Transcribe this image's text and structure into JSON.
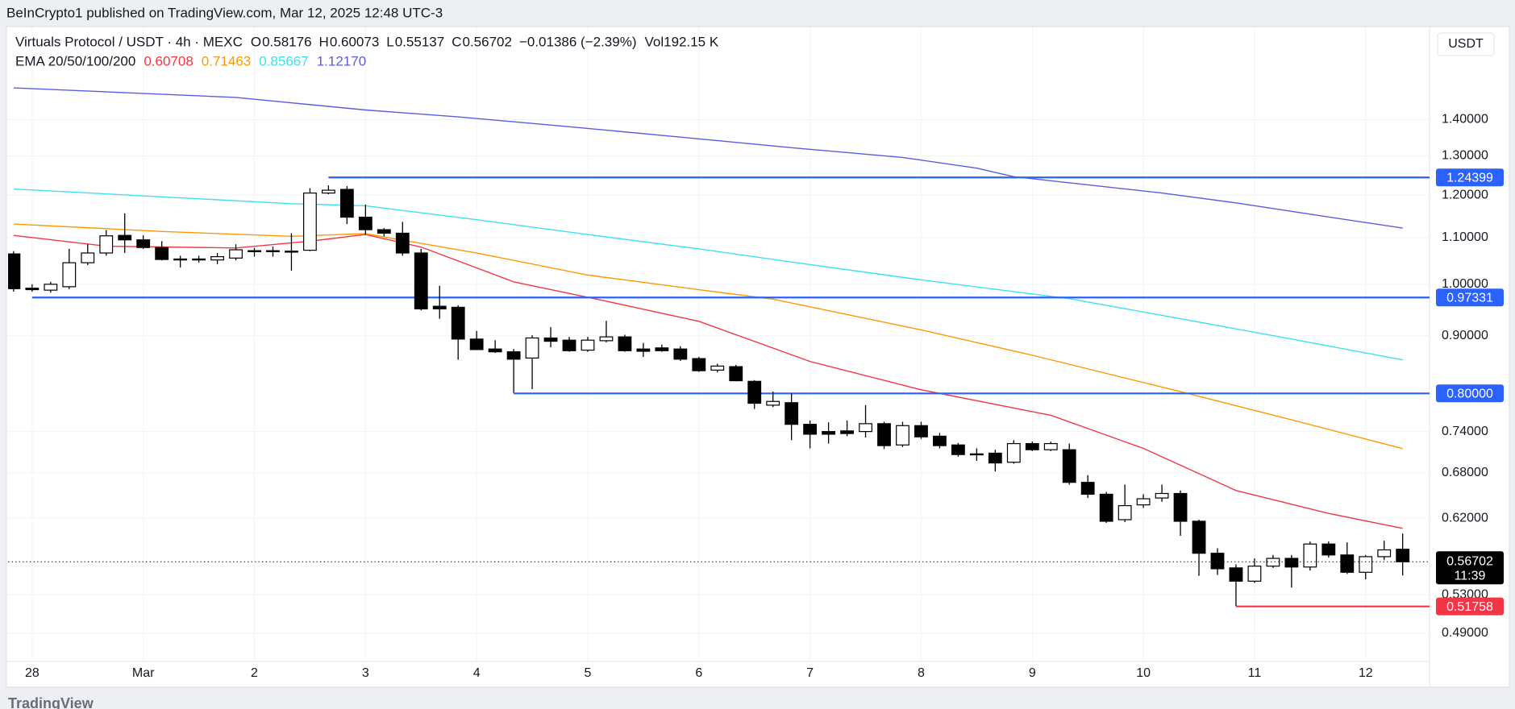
{
  "publisher": "BeInCrypto1 published on TradingView.com, Mar 12, 2025 12:48 UTC-3",
  "footer": "TradingView",
  "chart_data": {
    "type": "candlestick",
    "title": "Virtuals Protocol / USDT · 4h · MEXC",
    "ohlc_keys": [
      "O",
      "H",
      "L",
      "C"
    ],
    "change": "−0.01386 (−2.39%)",
    "volume": "Vol192.15 K",
    "ema_label": "EMA 20/50/100/200",
    "price_axis_label": "USDT",
    "countdown": "11:39",
    "log_scale": true,
    "grid": true,
    "candle_colors": {
      "up": "#ffffff",
      "down": "#000000",
      "outline": "#000000"
    },
    "candles": {
      "open": [
        1.064,
        0.992,
        0.988,
        0.995,
        1.045,
        1.066,
        1.105,
        1.095,
        1.078,
        1.052,
        1.053,
        1.051,
        1.055,
        1.07,
        1.071,
        1.069,
        1.072,
        1.205,
        1.214,
        1.147,
        1.118,
        1.11,
        1.066,
        0.956,
        0.954,
        0.894,
        0.876,
        0.871,
        0.86,
        0.896,
        0.892,
        0.874,
        0.891,
        0.898,
        0.876,
        0.878,
        0.876,
        0.859,
        0.839,
        0.845,
        0.82,
        0.781,
        0.785,
        0.751,
        0.74,
        0.741,
        0.74,
        0.752,
        0.72,
        0.749,
        0.733,
        0.72,
        0.707,
        0.708,
        0.695,
        0.722,
        0.713,
        0.713,
        0.667,
        0.651,
        0.618,
        0.637,
        0.646,
        0.652,
        0.616,
        0.577,
        0.56,
        0.545,
        0.562,
        0.571,
        0.561,
        0.588,
        0.575,
        0.555,
        0.573,
        0.58176
      ],
      "high": [
        1.07,
        1.0,
        1.005,
        1.075,
        1.085,
        1.117,
        1.156,
        1.105,
        1.092,
        1.06,
        1.06,
        1.066,
        1.085,
        1.077,
        1.08,
        1.11,
        1.217,
        1.224,
        1.222,
        1.177,
        1.122,
        1.136,
        1.075,
        0.997,
        0.958,
        0.909,
        0.892,
        0.876,
        0.901,
        0.916,
        0.898,
        0.898,
        0.928,
        0.902,
        0.887,
        0.884,
        0.881,
        0.862,
        0.85,
        0.848,
        0.822,
        0.803,
        0.8,
        0.757,
        0.754,
        0.757,
        0.781,
        0.755,
        0.755,
        0.755,
        0.738,
        0.723,
        0.715,
        0.713,
        0.727,
        0.725,
        0.725,
        0.722,
        0.677,
        0.654,
        0.664,
        0.651,
        0.664,
        0.656,
        0.618,
        0.583,
        0.564,
        0.571,
        0.575,
        0.575,
        0.591,
        0.591,
        0.59,
        0.575,
        0.592,
        0.60073
      ],
      "low": [
        0.985,
        0.985,
        0.983,
        0.99,
        1.04,
        1.06,
        1.066,
        1.075,
        1.05,
        1.035,
        1.045,
        1.042,
        1.05,
        1.058,
        1.058,
        1.028,
        1.07,
        1.202,
        1.131,
        1.107,
        1.103,
        1.06,
        0.948,
        0.932,
        0.857,
        0.874,
        0.869,
        0.801,
        0.807,
        0.879,
        0.871,
        0.871,
        0.888,
        0.871,
        0.862,
        0.871,
        0.855,
        0.836,
        0.835,
        0.82,
        0.775,
        0.778,
        0.727,
        0.715,
        0.722,
        0.733,
        0.731,
        0.714,
        0.717,
        0.729,
        0.715,
        0.703,
        0.697,
        0.682,
        0.693,
        0.711,
        0.711,
        0.664,
        0.646,
        0.614,
        0.615,
        0.633,
        0.641,
        0.598,
        0.551,
        0.552,
        0.518,
        0.543,
        0.56,
        0.538,
        0.557,
        0.572,
        0.553,
        0.547,
        0.569,
        0.55137
      ],
      "close": [
        0.991,
        0.989,
        1.0,
        1.045,
        1.066,
        1.104,
        1.095,
        1.078,
        1.052,
        1.053,
        1.051,
        1.058,
        1.073,
        1.071,
        1.069,
        1.07,
        1.205,
        1.212,
        1.147,
        1.118,
        1.11,
        1.066,
        0.951,
        0.951,
        0.894,
        0.875,
        0.871,
        0.858,
        0.896,
        0.89,
        0.873,
        0.892,
        0.898,
        0.873,
        0.872,
        0.873,
        0.858,
        0.838,
        0.846,
        0.821,
        0.784,
        0.787,
        0.751,
        0.736,
        0.736,
        0.737,
        0.752,
        0.719,
        0.749,
        0.732,
        0.719,
        0.706,
        0.706,
        0.694,
        0.722,
        0.713,
        0.722,
        0.667,
        0.651,
        0.616,
        0.636,
        0.645,
        0.652,
        0.616,
        0.577,
        0.559,
        0.545,
        0.562,
        0.571,
        0.561,
        0.588,
        0.575,
        0.555,
        0.573,
        0.581,
        0.56702
      ]
    },
    "series": [
      {
        "color": "#f23645",
        "x": [
          0,
          5,
          12,
          16,
          19,
          22,
          27,
          32,
          37,
          43,
          49,
          56,
          61,
          66,
          71,
          75
        ],
        "values": [
          1.105,
          1.081,
          1.077,
          1.092,
          1.107,
          1.079,
          1.005,
          0.966,
          0.927,
          0.854,
          0.806,
          0.765,
          0.715,
          0.656,
          0.626,
          0.60708
        ],
        "value_labels": [
          null,
          null,
          null,
          null,
          null,
          null,
          null,
          null,
          null,
          null,
          null,
          null,
          null,
          null,
          null,
          "0.60708"
        ]
      },
      {
        "color": "#ff9800",
        "x": [
          0,
          8,
          15,
          19,
          25,
          31,
          37,
          41,
          49,
          55,
          63,
          69,
          75
        ],
        "values": [
          1.131,
          1.114,
          1.103,
          1.109,
          1.066,
          1.019,
          0.989,
          0.97,
          0.911,
          0.865,
          0.803,
          0.758,
          0.71463
        ],
        "value_labels": [
          null,
          null,
          null,
          null,
          null,
          null,
          null,
          null,
          null,
          null,
          null,
          null,
          "0.71463"
        ]
      },
      {
        "color": "#3fe0f0",
        "x": [
          0,
          15,
          19,
          25,
          31,
          37,
          43,
          49,
          57,
          63,
          69,
          75
        ],
        "values": [
          1.215,
          1.179,
          1.174,
          1.141,
          1.107,
          1.075,
          1.041,
          1.009,
          0.971,
          0.932,
          0.894,
          0.85667
        ],
        "value_labels": [
          null,
          null,
          null,
          null,
          null,
          null,
          null,
          null,
          null,
          null,
          null,
          "0.85667"
        ]
      },
      {
        "color": "#5b5ce2",
        "x": [
          0,
          12,
          19,
          24,
          30,
          36,
          42,
          48,
          52,
          54,
          62,
          66,
          70,
          75
        ],
        "values": [
          1.494,
          1.465,
          1.428,
          1.408,
          1.38,
          1.351,
          1.322,
          1.296,
          1.268,
          1.246,
          1.205,
          1.181,
          1.154,
          1.1217
        ],
        "value_labels": [
          null,
          null,
          null,
          null,
          null,
          null,
          null,
          null,
          null,
          null,
          null,
          null,
          null,
          "1.12170"
        ]
      }
    ],
    "levels": {
      "values": [
        1.24399,
        0.97331,
        0.8,
        0.51758
      ],
      "value_labels": [
        "1.24399",
        "0.97331",
        "0.80000",
        "0.51758"
      ],
      "start": [
        17,
        1,
        27,
        66
      ],
      "colors": [
        "#2962ff",
        "#2962ff",
        "#2962ff",
        "#f23645"
      ]
    },
    "last_price_color": "#000000",
    "xlim": [
      -0.3,
      76.45
    ],
    "xticks": [
      {
        "value": 1,
        "label": "28"
      },
      {
        "value": 7,
        "label": "Mar"
      },
      {
        "value": 13,
        "label": "2"
      },
      {
        "value": 19,
        "label": "3"
      },
      {
        "value": 25,
        "label": "4"
      },
      {
        "value": 31,
        "label": "5"
      },
      {
        "value": 37,
        "label": "6"
      },
      {
        "value": 43,
        "label": "7"
      },
      {
        "value": 49,
        "label": "8"
      },
      {
        "value": 55,
        "label": "9"
      },
      {
        "value": 61,
        "label": "10"
      },
      {
        "value": 67,
        "label": "11"
      },
      {
        "value": 73,
        "label": "12"
      }
    ],
    "ylim": [
      0.4625,
      1.692
    ],
    "yticks": [
      {
        "value": 0.49,
        "label": "0.49000"
      },
      {
        "value": 0.53,
        "label": "0.53000"
      },
      {
        "value": 0.62,
        "label": "0.62000"
      },
      {
        "value": 0.68,
        "label": "0.68000"
      },
      {
        "value": 0.74,
        "label": "0.74000"
      },
      {
        "value": 0.9,
        "label": "0.90000"
      },
      {
        "value": 1.0,
        "label": "1.00000"
      },
      {
        "value": 1.1,
        "label": "1.10000"
      },
      {
        "value": 1.2,
        "label": "1.20000"
      },
      {
        "value": 1.3,
        "label": "1.30000"
      },
      {
        "value": 1.4,
        "label": "1.40000"
      }
    ]
  }
}
